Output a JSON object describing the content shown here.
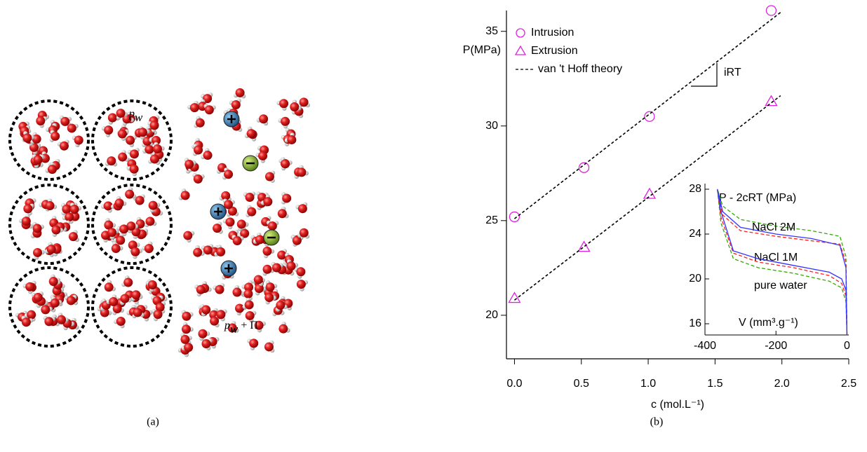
{
  "panels": {
    "a": {
      "label": "(a)",
      "pw": [
        "p",
        "w"
      ],
      "pw_pi": [
        "p",
        "w",
        " + Π"
      ]
    },
    "b": {
      "label": "(b)"
    }
  },
  "chart_data": [
    {
      "type": "scatter",
      "xlabel": "c (mol.L⁻¹)",
      "ylabel": "P(MPa)",
      "xlim": [
        -0.06,
        2.5
      ],
      "ylim": [
        17.7,
        36.1
      ],
      "xticks": [
        {
          "value": 0,
          "label": "0.0"
        },
        0.5,
        {
          "value": 1,
          "label": "1.0"
        },
        1.5,
        {
          "value": 2,
          "label": "2.0"
        },
        2.5
      ],
      "yticks": [
        20,
        25,
        30,
        35
      ],
      "legend": "upper left",
      "annotations": [
        "iRT"
      ],
      "series": [
        {
          "name": "Intrusion",
          "color": "#e020e0",
          "marker": "circle",
          "x": [
            0,
            0.52,
            1.01,
            1.92
          ],
          "values": [
            25.2,
            27.8,
            30.5,
            36.1
          ]
        },
        {
          "name": "Extrusion",
          "color": "#e020e0",
          "marker": "triangle",
          "x": [
            0,
            0.52,
            1.01,
            1.92
          ],
          "values": [
            20.9,
            23.6,
            26.4,
            31.3
          ]
        },
        {
          "name": "van 't Hoff theory",
          "color": "#000000",
          "style": "dashed",
          "x": [
            0,
            1.99,
            null,
            0,
            1.99
          ],
          "values": [
            25.1,
            36.0,
            null,
            20.8,
            31.6
          ]
        }
      ]
    },
    {
      "type": "line",
      "ylabel": "P - 2cRT  (MPa)",
      "xlabel": "V (mm³.g⁻¹)",
      "xlim": [
        -400,
        5
      ],
      "ylim": [
        15,
        28.5
      ],
      "xticks": [
        -400,
        -200,
        0
      ],
      "yticks": [
        16,
        20,
        24,
        28
      ],
      "series": [
        {
          "name": "NaCl 2M",
          "color": "#33aa00",
          "style": "dashed",
          "x": [
            0,
            -3,
            -20,
            -100,
            -200,
            -300,
            -350,
            -365,
            -355,
            -320,
            -250,
            -150,
            -50,
            -15,
            -3,
            0
          ],
          "values": [
            15,
            22,
            23.8,
            24.3,
            24.7,
            25.3,
            26.5,
            28,
            25,
            21.8,
            21,
            20.5,
            19.8,
            19.2,
            18,
            15
          ]
        },
        {
          "name": "NaCl 1M",
          "color": "#ff2020",
          "style": "dashed",
          "x": [
            0,
            -3,
            -20,
            -100,
            -200,
            -300,
            -350,
            -365,
            -355,
            -320,
            -250,
            -150,
            -50,
            -15,
            -3,
            0
          ],
          "values": [
            15,
            21.5,
            23.1,
            23.4,
            23.8,
            24.3,
            25.7,
            28,
            25.5,
            22.3,
            21.5,
            21,
            20.3,
            19.6,
            18.5,
            15
          ]
        },
        {
          "name": "pure water",
          "color": "#3333ff",
          "style": "solid",
          "x": [
            0,
            -3,
            -20,
            -100,
            -200,
            -300,
            -350,
            -365,
            -355,
            -320,
            -250,
            -150,
            -50,
            -15,
            -3,
            0
          ],
          "values": [
            15,
            21,
            23,
            23.6,
            24,
            24.6,
            26,
            28,
            26,
            22.5,
            21.8,
            21.2,
            20.6,
            20,
            19,
            15
          ]
        }
      ]
    }
  ]
}
